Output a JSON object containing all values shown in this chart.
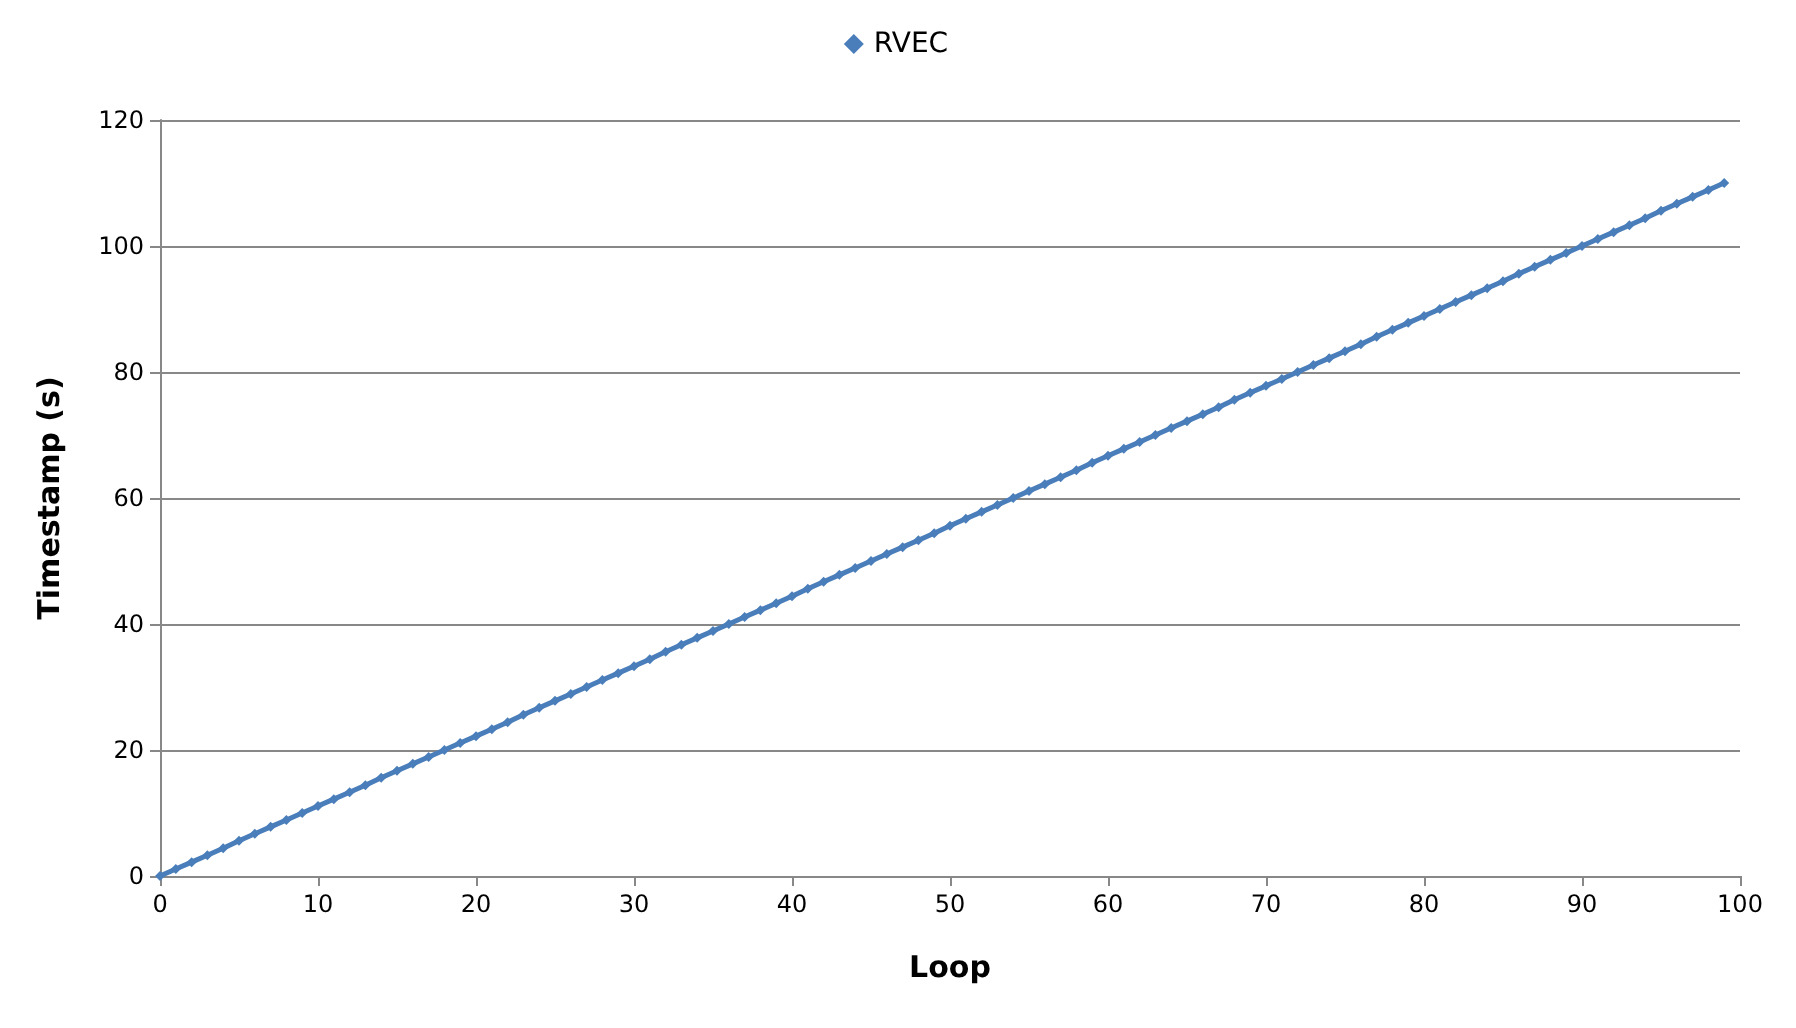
{
  "chart_data": {
    "type": "line",
    "xlabel": "Loop",
    "ylabel": "Timestamp (s)",
    "x": [
      0,
      1,
      2,
      3,
      4,
      5,
      6,
      7,
      8,
      9,
      10,
      11,
      12,
      13,
      14,
      15,
      16,
      17,
      18,
      19,
      20,
      21,
      22,
      23,
      24,
      25,
      26,
      27,
      28,
      29,
      30,
      31,
      32,
      33,
      34,
      35,
      36,
      37,
      38,
      39,
      40,
      41,
      42,
      43,
      44,
      45,
      46,
      47,
      48,
      49,
      50,
      51,
      52,
      53,
      54,
      55,
      56,
      57,
      58,
      59,
      60,
      61,
      62,
      63,
      64,
      65,
      66,
      67,
      68,
      69,
      70,
      71,
      72,
      73,
      74,
      75,
      76,
      77,
      78,
      79,
      80,
      81,
      82,
      83,
      84,
      85,
      86,
      87,
      88,
      89,
      90,
      91,
      92,
      93,
      94,
      95,
      96,
      97,
      98,
      99
    ],
    "series": [
      {
        "name": "RVEC",
        "color": "#4a7ebb",
        "values": [
          0,
          1.1,
          2.2,
          3.3,
          4.4,
          5.6,
          6.7,
          7.8,
          8.9,
          10,
          11.1,
          12.2,
          13.3,
          14.4,
          15.6,
          16.7,
          17.8,
          18.9,
          20,
          21.1,
          22.2,
          23.3,
          24.4,
          25.6,
          26.7,
          27.8,
          28.9,
          30,
          31.1,
          32.2,
          33.3,
          34.4,
          35.6,
          36.7,
          37.8,
          38.9,
          40,
          41.1,
          42.2,
          43.3,
          44.4,
          45.6,
          46.7,
          47.8,
          48.9,
          50,
          51.1,
          52.2,
          53.3,
          54.4,
          55.6,
          56.7,
          57.8,
          58.9,
          60,
          61.1,
          62.2,
          63.3,
          64.4,
          65.6,
          66.7,
          67.8,
          68.9,
          70,
          71.1,
          72.2,
          73.3,
          74.4,
          75.6,
          76.7,
          77.8,
          78.9,
          80,
          81.1,
          82.2,
          83.3,
          84.4,
          85.6,
          86.7,
          87.8,
          88.9,
          90,
          91.1,
          92.2,
          93.3,
          94.4,
          95.6,
          96.7,
          97.8,
          98.9,
          100,
          101.1,
          102.2,
          103.3,
          104.4,
          105.6,
          106.7,
          107.8,
          108.9,
          110
        ]
      }
    ],
    "xlim": [
      0,
      100
    ],
    "xticks": [
      0,
      10,
      20,
      30,
      40,
      50,
      60,
      70,
      80,
      90,
      100
    ],
    "ylim": [
      0,
      120
    ],
    "yticks": [
      0,
      20,
      40,
      60,
      80,
      100,
      120
    ],
    "grid": "y",
    "legend": "top",
    "marker": "diamond",
    "line_style": "solid"
  }
}
